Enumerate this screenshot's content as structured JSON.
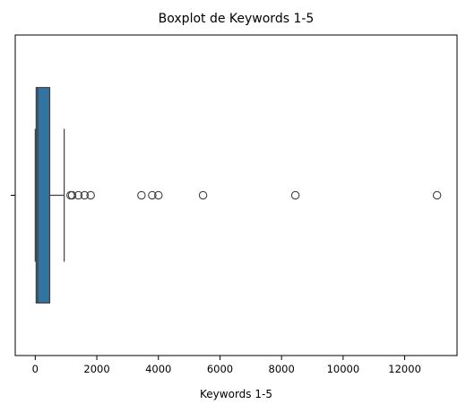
{
  "chart_data": {
    "type": "boxplot",
    "title": "Boxplot de Keywords 1-5",
    "xlabel": "Keywords 1-5",
    "ylabel": "",
    "xlim": [
      -650,
      13700
    ],
    "xticks": [
      0,
      2000,
      4000,
      6000,
      8000,
      10000,
      12000
    ],
    "xtick_labels": [
      "0",
      "2000",
      "4000",
      "6000",
      "8000",
      "10000",
      "12000"
    ],
    "grid": false,
    "series": [
      {
        "whisker_low": 0,
        "q1": 30,
        "median": 80,
        "q3": 470,
        "whisker_high": 940,
        "outliers": [
          1150,
          1200,
          1400,
          1600,
          1800,
          3450,
          3800,
          4000,
          5450,
          8450,
          13050
        ],
        "color": "#3274a1"
      }
    ]
  }
}
